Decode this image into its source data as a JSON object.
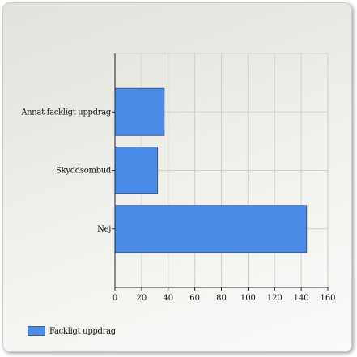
{
  "chart_data": {
    "type": "bar",
    "orientation": "horizontal",
    "categories": [
      "Annat fackligt uppdrag",
      "Skyddsombud",
      "Nej"
    ],
    "series": [
      {
        "name": "Fackligt uppdrag",
        "values": [
          37,
          32,
          144
        ],
        "color": "#4a8be8"
      }
    ],
    "x_ticks": [
      0,
      20,
      40,
      60,
      80,
      100,
      120,
      140,
      160
    ],
    "xlim": [
      0,
      160
    ],
    "grid": true,
    "legend_position": "bottom-left"
  }
}
